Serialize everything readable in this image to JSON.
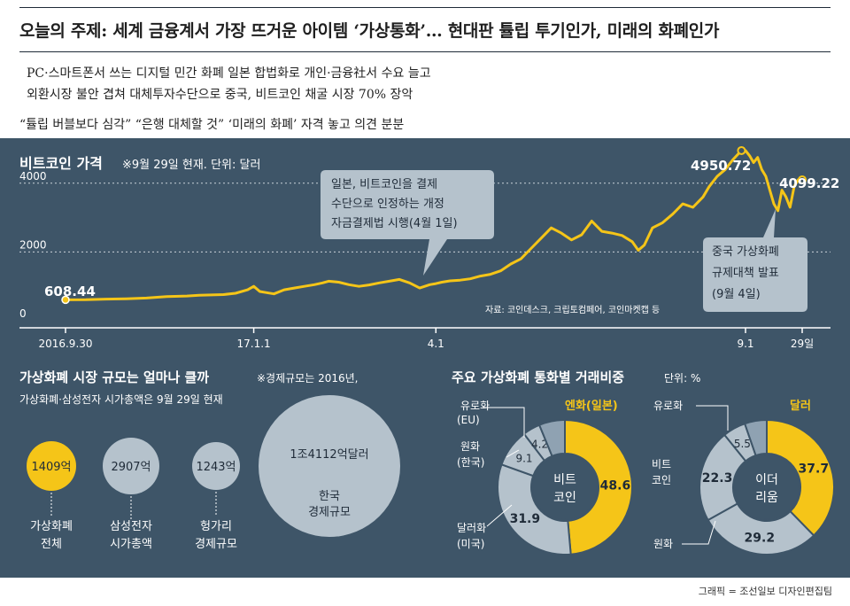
{
  "header": {
    "headline": "오늘의 주제: 세계 금융계서 가장 뜨거운 아이템 ‘가상통화’… 현대판 튤립 투기인가, 미래의 화폐인가",
    "sub1": "PC·스마트폰서 쓰는 디지털 민간 화폐   일본 합법화로 개인·금융社서 수요 늘고",
    "sub2": "외환시장 불안 겹쳐 대체투자수단으로 중국, 비트코인 채굴 시장 70% 장악",
    "quote": "“튤립 버블보다 심각” “은행 대체할 것”  ‘미래의 화폐’ 자격 놓고 의견 분분"
  },
  "colors": {
    "panel": "#3e5568",
    "accent": "#f5c518",
    "light": "#b5c2cc",
    "mid": "#8fa2b2",
    "dark": "#3e5568"
  },
  "chart_data": [
    {
      "type": "line",
      "title": "비트코인 가격",
      "subtitle": "※9월 29일 현재. 단위: 달러",
      "ylim": [
        0,
        5000
      ],
      "yticks": [
        0,
        2000,
        4000
      ],
      "xlim": [
        0,
        364
      ],
      "xticks": [
        {
          "x": 0,
          "label": "2016.9.30"
        },
        {
          "x": 93,
          "label": "17.1.1"
        },
        {
          "x": 183,
          "label": "4.1"
        },
        {
          "x": 336,
          "label": "9.1"
        },
        {
          "x": 364,
          "label": "29일"
        }
      ],
      "grid": true,
      "series": [
        {
          "x": [
            0,
            10,
            20,
            30,
            40,
            50,
            60,
            66,
            72,
            78,
            84,
            90,
            93,
            96,
            99,
            103,
            108,
            113,
            118,
            123,
            127,
            130,
            135,
            140,
            145,
            150,
            155,
            160,
            165,
            170,
            175,
            180,
            183,
            186,
            190,
            195,
            200,
            205,
            210,
            215,
            220,
            225,
            230,
            235,
            240,
            245,
            250,
            255,
            260,
            265,
            270,
            275,
            280,
            283,
            286,
            290,
            295,
            300,
            305,
            310,
            315,
            318,
            322,
            326,
            330,
            334,
            336,
            338,
            340,
            342,
            344,
            346,
            348,
            350,
            352,
            354,
            356,
            358,
            360,
            362,
            364
          ],
          "values": [
            608,
            610,
            630,
            640,
            660,
            700,
            720,
            740,
            750,
            760,
            800,
            900,
            1000,
            850,
            820,
            780,
            900,
            950,
            1000,
            1050,
            1100,
            1150,
            1120,
            1050,
            1000,
            1040,
            1100,
            1150,
            1200,
            1100,
            950,
            1050,
            1080,
            1120,
            1160,
            1180,
            1220,
            1300,
            1350,
            1450,
            1650,
            1800,
            2100,
            2400,
            2700,
            2550,
            2350,
            2500,
            2900,
            2600,
            2550,
            2480,
            2300,
            2050,
            2200,
            2700,
            2850,
            3100,
            3400,
            3300,
            3600,
            3900,
            4200,
            4400,
            4700,
            4950,
            4950,
            4800,
            4600,
            4750,
            4400,
            4200,
            3800,
            3400,
            3200,
            3800,
            3600,
            3300,
            3900,
            4100,
            4099
          ]
        }
      ],
      "labels": {
        "start": "608.44",
        "peak": "4950.72",
        "end": "4099.22"
      },
      "annotations": [
        {
          "text": [
            "일본, 비트코인을 결제",
            "수단으로 인정하는 개정",
            "자금결제법 시행(4월 1일)"
          ]
        },
        {
          "text": [
            "중국 가상화폐",
            "규제대책 발표",
            "(9월 4일)"
          ]
        }
      ],
      "source": "자료: 코인데스크, 크립토컴페어, 코인마켓캡 등"
    },
    {
      "type": "bubble",
      "title": "가상화폐 시장 규모는 얼마나 클까",
      "note": "※경제규모는 2016년,",
      "note2": "가상화폐·삼성전자 시가총액은 9월 29일 현재",
      "items": [
        {
          "value_text": "1409억",
          "value": 1409,
          "label": [
            "가상화폐",
            "전체"
          ],
          "highlight": true
        },
        {
          "value_text": "2907억",
          "value": 2907,
          "label": [
            "삼성전자",
            "시가총액"
          ],
          "highlight": false
        },
        {
          "value_text": "1243억",
          "value": 1243,
          "label": [
            "헝가리",
            "경제규모"
          ],
          "highlight": false
        },
        {
          "value_text": "1조4112억달러",
          "value": 14112,
          "label": [
            "한국",
            "경제규모"
          ],
          "highlight": false
        }
      ]
    },
    {
      "type": "pie",
      "title": "주요 가상화폐 통화별 거래비중",
      "unit": "단위: %",
      "donuts": [
        {
          "center": [
            "비트",
            "코인"
          ],
          "slices": [
            {
              "name": "엔화(일본)",
              "value": 48.6,
              "color": "#f5c518"
            },
            {
              "name": "달러화(미국)",
              "value": 31.9,
              "color": "#b5c2cc"
            },
            {
              "name": "원화(한국)",
              "value": 9.1,
              "color": "#b5c2cc"
            },
            {
              "name": "유로화(EU)",
              "value": 4.2,
              "color": "#b5c2cc"
            },
            {
              "name": "",
              "value": 6.2,
              "color": "#8fa2b2"
            }
          ],
          "labels": {
            "jpy": "엔화(일본)",
            "usd": [
              "달러화",
              "(미국)"
            ],
            "krw": [
              "원화",
              "(한국)"
            ],
            "eur": [
              "유로화",
              "(EU)"
            ]
          }
        },
        {
          "center": [
            "이더",
            "리움"
          ],
          "slices": [
            {
              "name": "달러",
              "value": 37.7,
              "color": "#f5c518"
            },
            {
              "name": "원화",
              "value": 29.2,
              "color": "#b5c2cc"
            },
            {
              "name": "비트코인",
              "value": 22.3,
              "color": "#b5c2cc"
            },
            {
              "name": "유로화",
              "value": 5.5,
              "color": "#b5c2cc"
            },
            {
              "name": "",
              "value": 5.3,
              "color": "#8fa2b2"
            }
          ],
          "labels": {
            "usd": "달러",
            "krw": "원화",
            "btc": [
              "비트",
              "코인"
            ],
            "eur": "유로화"
          }
        }
      ]
    }
  ],
  "footer": {
    "credit": "그래픽 = 조선일보 디자인편집팀"
  }
}
